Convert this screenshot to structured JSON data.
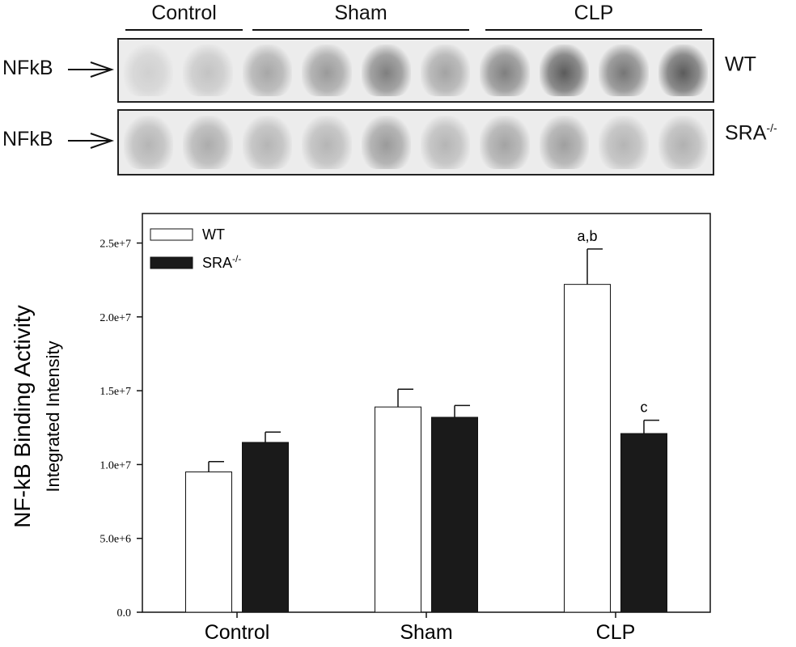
{
  "blot": {
    "groups": [
      "Control",
      "Sham",
      "CLP"
    ],
    "rows": [
      {
        "left_label": "NFkB",
        "right_label": "WT",
        "right_sup": "",
        "intensities": [
          0.15,
          0.22,
          0.38,
          0.45,
          0.6,
          0.4,
          0.6,
          0.8,
          0.65,
          0.8
        ]
      },
      {
        "left_label": "NFkB",
        "right_label": "SRA",
        "right_sup": "-/-",
        "intensities": [
          0.3,
          0.35,
          0.3,
          0.3,
          0.45,
          0.3,
          0.4,
          0.42,
          0.3,
          0.32
        ]
      }
    ]
  },
  "chart_data": {
    "type": "bar",
    "categories": [
      "Control",
      "Sham",
      "CLP"
    ],
    "series": [
      {
        "name": "WT",
        "values": [
          9500000,
          13900000,
          22200000
        ],
        "errors": [
          700000,
          1200000,
          2400000
        ],
        "labels": [
          "",
          "",
          "a,b"
        ],
        "color": "#ffffff"
      },
      {
        "name": "SRA",
        "name_sup": "-/-",
        "values": [
          11500000,
          13200000,
          12100000
        ],
        "errors": [
          700000,
          800000,
          900000
        ],
        "labels": [
          "",
          "",
          "c"
        ],
        "color": "#1a1a1a"
      }
    ],
    "ylabel": "NF-kB Binding Activity",
    "ylabel2": "Integrated Intensity",
    "ylim": [
      0,
      27000000
    ],
    "yticks": [
      0,
      5000000,
      10000000,
      15000000,
      20000000,
      25000000
    ],
    "ytick_labels": [
      "0.0",
      "5.0e+6",
      "1.0e+7",
      "1.5e+7",
      "2.0e+7",
      "2.5e+7"
    ],
    "grid": false,
    "legend_position": "top-left"
  }
}
